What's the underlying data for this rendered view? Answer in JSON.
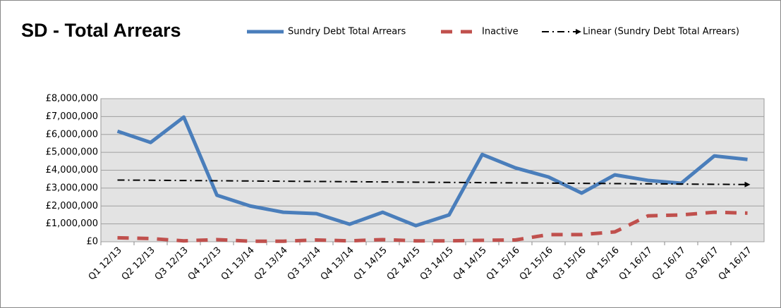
{
  "chart_data": {
    "type": "line",
    "title": "SD - Total Arrears",
    "categories": [
      "Q1 12/13",
      "Q2 12/13",
      "Q3 12/13",
      "Q4 12/13",
      "Q1 13/14",
      "Q2 13/14",
      "Q3 13/14",
      "Q4 13/14",
      "Q1 14/15",
      "Q2 14/15",
      "Q3 14/15",
      "Q4 14/15",
      "Q1 15/16",
      "Q2 15/16",
      "Q3 15/16",
      "Q4 15/16",
      "Q1 16/17",
      "Q2 16/17",
      "Q3 16/17",
      "Q4 16/17"
    ],
    "series": [
      {
        "name": "Sundry Debt Total Arrears",
        "color": "#4a7ebb",
        "style": "solid",
        "values": [
          6180000,
          5550000,
          6970000,
          2600000,
          2000000,
          1650000,
          1570000,
          980000,
          1650000,
          900000,
          1500000,
          4880000,
          4130000,
          3620000,
          2720000,
          3740000,
          3430000,
          3270000,
          4800000,
          4600000
        ]
      },
      {
        "name": "Inactive",
        "color": "#c0504d",
        "style": "dashed",
        "values": [
          220000,
          180000,
          50000,
          120000,
          30000,
          30000,
          100000,
          50000,
          120000,
          50000,
          50000,
          80000,
          100000,
          400000,
          400000,
          550000,
          1450000,
          1500000,
          1650000,
          1600000
        ]
      },
      {
        "name": "Linear (Sundry Debt Total Arrears)",
        "color": "#000000",
        "style": "dashdot",
        "values": [
          3450000,
          3437000,
          3424000,
          3411000,
          3397000,
          3384000,
          3371000,
          3358000,
          3345000,
          3332000,
          3318000,
          3305000,
          3292000,
          3279000,
          3266000,
          3253000,
          3239000,
          3226000,
          3213000,
          3200000
        ]
      }
    ],
    "ylim": [
      0,
      8000000
    ],
    "yticks": [
      {
        "value": 0,
        "label": "£0"
      },
      {
        "value": 1000000,
        "label": "£1,000,000"
      },
      {
        "value": 2000000,
        "label": "£2,000,000"
      },
      {
        "value": 3000000,
        "label": "£3,000,000"
      },
      {
        "value": 4000000,
        "label": "£4,000,000"
      },
      {
        "value": 5000000,
        "label": "£5,000,000"
      },
      {
        "value": 6000000,
        "label": "£6,000,000"
      },
      {
        "value": 7000000,
        "label": "£7,000,000"
      },
      {
        "value": 8000000,
        "label": "£8,000,000"
      }
    ],
    "grid": true
  }
}
